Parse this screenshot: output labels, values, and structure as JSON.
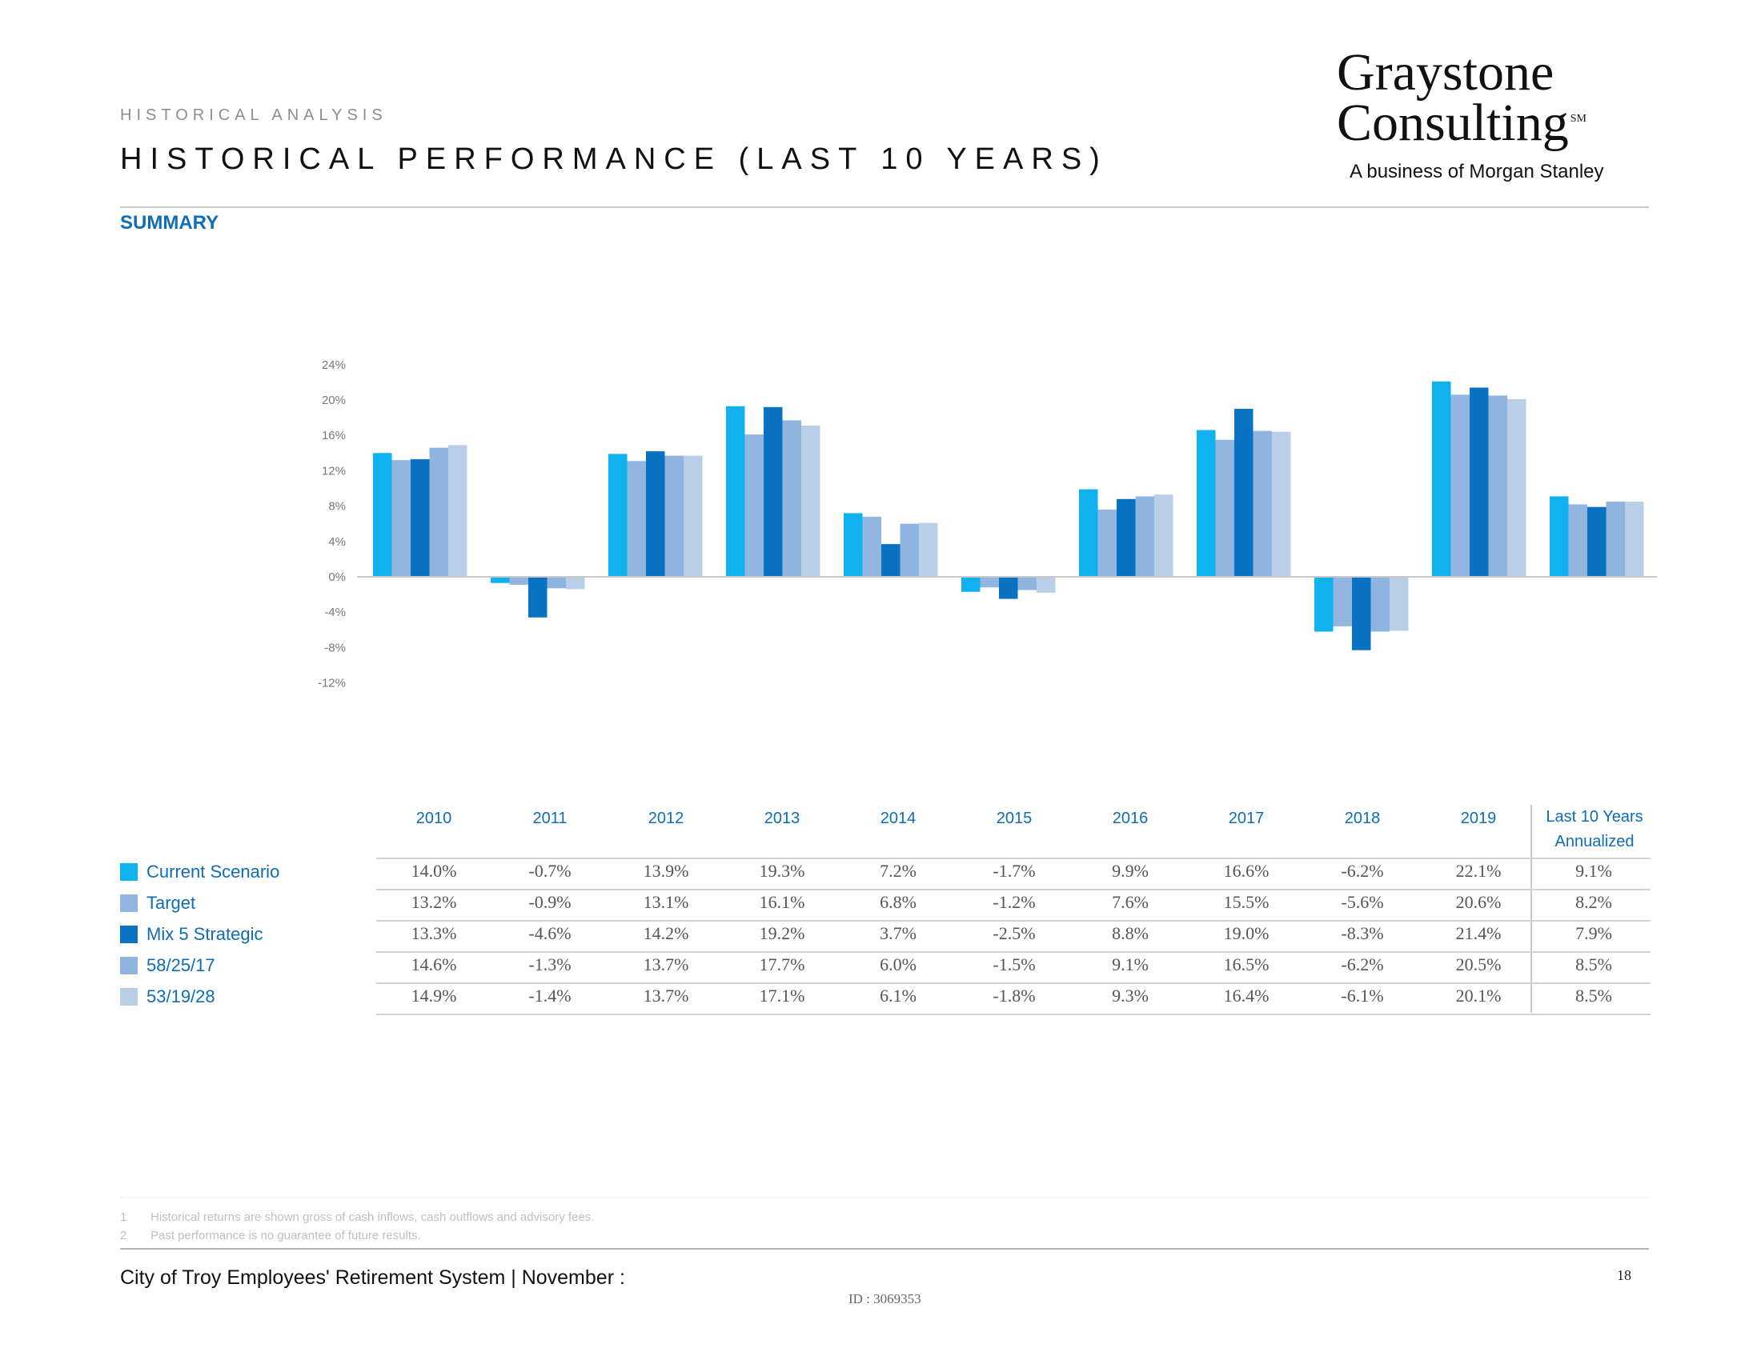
{
  "header": {
    "eyebrow": "HISTORICAL ANALYSIS",
    "title": "HISTORICAL PERFORMANCE (LAST 10 YEARS)",
    "section": "SUMMARY"
  },
  "logo": {
    "line1": "Graystone",
    "line2": "Consulting",
    "mark": "SM",
    "tagline": "A business of Morgan Stanley"
  },
  "colors": {
    "series": [
      "#0fb2ee",
      "#93b6e1",
      "#0a72c2",
      "#8fb4e0",
      "#b9cfe7"
    ],
    "axis": "#c8c8c8",
    "accent": "#0f6cb6"
  },
  "chart_data": {
    "type": "bar",
    "categories": [
      "2010",
      "2011",
      "2012",
      "2013",
      "2014",
      "2015",
      "2016",
      "2017",
      "2018",
      "2019",
      "Last 10 Years Annualized"
    ],
    "yticks": [
      "24%",
      "20%",
      "16%",
      "12%",
      "8%",
      "4%",
      "0%",
      "-4%",
      "-8%",
      "-12%"
    ],
    "ylim": [
      -12,
      24
    ],
    "legend_placement": "left of table",
    "series": [
      {
        "name": "Current Scenario",
        "values": [
          14.0,
          -0.7,
          13.9,
          19.3,
          7.2,
          -1.7,
          9.9,
          16.6,
          -6.2,
          22.1,
          9.1
        ]
      },
      {
        "name": "Target",
        "values": [
          13.2,
          -0.9,
          13.1,
          16.1,
          6.8,
          -1.2,
          7.6,
          15.5,
          -5.6,
          20.6,
          8.2
        ]
      },
      {
        "name": "Mix 5 Strategic",
        "values": [
          13.3,
          -4.6,
          14.2,
          19.2,
          3.7,
          -2.5,
          8.8,
          19.0,
          -8.3,
          21.4,
          7.9
        ]
      },
      {
        "name": "58/25/17",
        "values": [
          14.6,
          -1.3,
          13.7,
          17.7,
          6.0,
          -1.5,
          9.1,
          16.5,
          -6.2,
          20.5,
          8.5
        ]
      },
      {
        "name": "53/19/28",
        "values": [
          14.9,
          -1.4,
          13.7,
          17.1,
          6.1,
          -1.8,
          9.3,
          16.4,
          -6.1,
          20.1,
          8.5
        ]
      }
    ]
  },
  "table": {
    "years": [
      "2010",
      "2011",
      "2012",
      "2013",
      "2014",
      "2015",
      "2016",
      "2017",
      "2018",
      "2019"
    ],
    "annualized_header_line1": "Last 10 Years",
    "annualized_header_line2": "Annualized",
    "rows": [
      {
        "label": "Current Scenario",
        "cells": [
          "14.0%",
          "-0.7%",
          "13.9%",
          "19.3%",
          "7.2%",
          "-1.7%",
          "9.9%",
          "16.6%",
          "-6.2%",
          "22.1%"
        ],
        "annualized": "9.1%"
      },
      {
        "label": "Target",
        "cells": [
          "13.2%",
          "-0.9%",
          "13.1%",
          "16.1%",
          "6.8%",
          "-1.2%",
          "7.6%",
          "15.5%",
          "-5.6%",
          "20.6%"
        ],
        "annualized": "8.2%"
      },
      {
        "label": "Mix 5 Strategic",
        "cells": [
          "13.3%",
          "-4.6%",
          "14.2%",
          "19.2%",
          "3.7%",
          "-2.5%",
          "8.8%",
          "19.0%",
          "-8.3%",
          "21.4%"
        ],
        "annualized": "7.9%"
      },
      {
        "label": "58/25/17",
        "cells": [
          "14.6%",
          "-1.3%",
          "13.7%",
          "17.7%",
          "6.0%",
          "-1.5%",
          "9.1%",
          "16.5%",
          "-6.2%",
          "20.5%"
        ],
        "annualized": "8.5%"
      },
      {
        "label": "53/19/28",
        "cells": [
          "14.9%",
          "-1.4%",
          "13.7%",
          "17.1%",
          "6.1%",
          "-1.8%",
          "9.3%",
          "16.4%",
          "-6.1%",
          "20.1%"
        ],
        "annualized": "8.5%"
      }
    ]
  },
  "footnotes": [
    {
      "num": "1",
      "text": "Historical returns are shown gross of cash inflows, cash outflows and advisory fees."
    },
    {
      "num": "2",
      "text": "Past performance is no guarantee of future results."
    }
  ],
  "footer": {
    "text": "City of Troy Employees' Retirement System | November :",
    "page": "18",
    "doc_id": "ID : 3069353"
  }
}
